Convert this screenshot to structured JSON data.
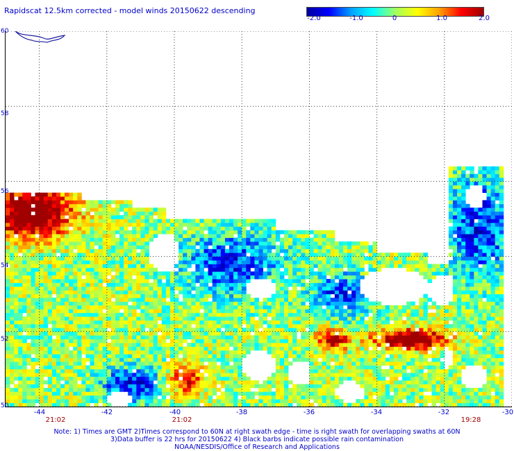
{
  "title": "Rapidscat 12.5km corrected - model winds 20150622 descending",
  "colorbar": {
    "ticks": [
      "-2.0",
      "-1.0",
      "0",
      "1.0",
      "2.0"
    ],
    "range": [
      -2.0,
      2.0
    ],
    "colors": [
      "#0000a0",
      "#0000ff",
      "#00a0ff",
      "#00ffff",
      "#a0ff60",
      "#ffff00",
      "#ffa000",
      "#ff0000",
      "#a00000"
    ]
  },
  "axes": {
    "lat_ticks": [
      "50",
      "52",
      "54",
      "56",
      "58",
      "60"
    ],
    "lon_ticks": [
      "-44",
      "-42",
      "-40",
      "-38",
      "-36",
      "-34",
      "-32",
      "-30"
    ],
    "lat_range": [
      50,
      60
    ],
    "lon_range": [
      -45,
      -30
    ],
    "grid": "dotted"
  },
  "times": [
    {
      "label": "21:02",
      "lon": -44
    },
    {
      "label": "21:02",
      "lon": -40
    },
    {
      "label": "19:28",
      "lon": -31.3
    }
  ],
  "notes": [
    "Note: 1) Times are GMT 2)Times correspond to 60N at right swath edge - time is right swath for overlapping swaths at 60N",
    "3)Data buffer is 22 hrs for 20150622 4) Black barbs indicate possible rain contamination",
    "NOAA/NESDIS/Office of Research and Applications"
  ]
}
